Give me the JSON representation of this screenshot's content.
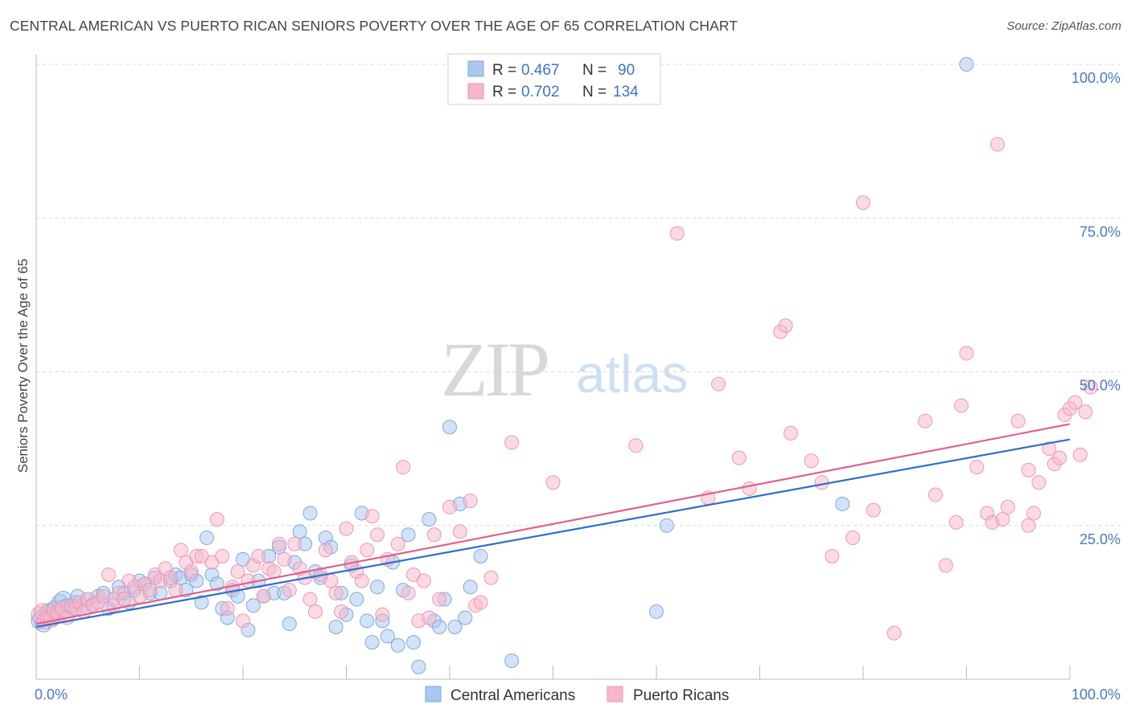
{
  "title": "CENTRAL AMERICAN VS PUERTO RICAN SENIORS POVERTY OVER THE AGE OF 65 CORRELATION CHART",
  "source": "Source: ZipAtlas.com",
  "watermark": {
    "zip": "ZIP",
    "atlas": "atlas"
  },
  "colors": {
    "blue_fill": "#a8c8f0",
    "blue_stroke": "#7fa9de",
    "blue_line": "#2f6fcb",
    "pink_fill": "#f7b6c9",
    "pink_stroke": "#ee97b2",
    "pink_line": "#e0618f",
    "grid": "#d9d9d9",
    "axis_text": "#4a78c2"
  },
  "legend": {
    "rows": [
      {
        "r_label": "R = ",
        "r_value": "0.467",
        "n_label": "N = ",
        "n_value": "90"
      },
      {
        "r_label": "R = ",
        "r_value": "0.702",
        "n_label": "N = ",
        "n_value": "134"
      }
    ]
  },
  "chart_data": {
    "type": "scatter",
    "title": "CENTRAL AMERICAN VS PUERTO RICAN SENIORS POVERTY OVER THE AGE OF 65 CORRELATION CHART",
    "xlabel": "",
    "ylabel": "Seniors Poverty Over the Age of 65",
    "xlim": [
      0,
      100
    ],
    "ylim": [
      0,
      100
    ],
    "x_tick_labels": [
      "0.0%",
      "100.0%"
    ],
    "y_tick_labels": [
      "100.0%",
      "75.0%",
      "50.0%",
      "25.0%"
    ],
    "y_ticks": [
      100,
      75,
      50,
      25
    ],
    "grid": true,
    "legend_position": "top-center",
    "series": [
      {
        "name": "Central Americans",
        "color": "#a8c8f0",
        "trend": {
          "x": [
            0,
            100
          ],
          "y": [
            8.5,
            39
          ]
        },
        "points": [
          [
            0.3,
            9.5
          ],
          [
            0.5,
            10
          ],
          [
            0.7,
            9
          ],
          [
            1,
            10.5
          ],
          [
            1.2,
            11
          ],
          [
            1.4,
            9.8
          ],
          [
            1.6,
            10.2
          ],
          [
            1.8,
            11.5
          ],
          [
            2,
            10.8
          ],
          [
            2.3,
            12.5
          ],
          [
            2.6,
            13
          ],
          [
            3,
            12
          ],
          [
            3.4,
            11.5
          ],
          [
            3.8,
            12.5
          ],
          [
            4,
            13.5
          ],
          [
            4.5,
            12
          ],
          [
            5,
            13
          ],
          [
            5.5,
            12.2
          ],
          [
            6,
            13.5
          ],
          [
            6.5,
            14
          ],
          [
            7,
            11.5
          ],
          [
            7.5,
            13
          ],
          [
            8,
            15
          ],
          [
            8.5,
            14
          ],
          [
            9,
            12.5
          ],
          [
            9.5,
            14.5
          ],
          [
            10,
            16
          ],
          [
            10.5,
            15.5
          ],
          [
            11,
            14
          ],
          [
            11.5,
            16.5
          ],
          [
            12,
            14
          ],
          [
            13,
            16
          ],
          [
            13.5,
            17
          ],
          [
            14,
            16.5
          ],
          [
            14.5,
            14.5
          ],
          [
            15,
            17
          ],
          [
            15.5,
            16
          ],
          [
            16,
            12.5
          ],
          [
            16.5,
            23
          ],
          [
            17,
            17
          ],
          [
            17.5,
            15.5
          ],
          [
            18,
            11.5
          ],
          [
            18.5,
            10
          ],
          [
            19,
            14.5
          ],
          [
            19.5,
            13.5
          ],
          [
            20,
            19.5
          ],
          [
            20.5,
            8
          ],
          [
            21,
            12
          ],
          [
            21.5,
            16
          ],
          [
            22,
            13.5
          ],
          [
            22.5,
            20
          ],
          [
            23,
            14
          ],
          [
            23.5,
            21.5
          ],
          [
            24,
            14
          ],
          [
            24.5,
            9
          ],
          [
            25,
            19
          ],
          [
            25.5,
            24
          ],
          [
            26,
            22
          ],
          [
            26.5,
            27
          ],
          [
            27,
            17.5
          ],
          [
            27.5,
            16.5
          ],
          [
            28,
            23
          ],
          [
            28.5,
            21.5
          ],
          [
            29,
            8.5
          ],
          [
            29.5,
            14
          ],
          [
            30,
            10.5
          ],
          [
            30.5,
            18.5
          ],
          [
            31,
            13
          ],
          [
            31.5,
            27
          ],
          [
            32,
            9.5
          ],
          [
            32.5,
            6
          ],
          [
            33,
            15
          ],
          [
            33.5,
            9.5
          ],
          [
            34,
            7
          ],
          [
            34.5,
            19
          ],
          [
            35,
            5.5
          ],
          [
            35.5,
            14.5
          ],
          [
            36,
            23.5
          ],
          [
            36.5,
            6
          ],
          [
            37,
            2
          ],
          [
            38,
            26
          ],
          [
            38.5,
            9.5
          ],
          [
            39,
            8.5
          ],
          [
            39.5,
            13
          ],
          [
            40,
            41
          ],
          [
            40.5,
            8.5
          ],
          [
            41,
            28.5
          ],
          [
            41.5,
            10
          ],
          [
            42,
            15
          ],
          [
            43,
            20
          ],
          [
            46,
            3
          ],
          [
            61,
            25
          ],
          [
            60,
            11
          ],
          [
            78,
            28.5
          ],
          [
            90,
            100
          ]
        ]
      },
      {
        "name": "Puerto Ricans",
        "color": "#f7b6c9",
        "trend": {
          "x": [
            0,
            100
          ],
          "y": [
            9,
            41.5
          ]
        },
        "points": [
          [
            0.3,
            10.5
          ],
          [
            0.6,
            11
          ],
          [
            0.9,
            9.5
          ],
          [
            1.2,
            10
          ],
          [
            1.5,
            9.8
          ],
          [
            1.8,
            11.2
          ],
          [
            2.2,
            10.5
          ],
          [
            2.6,
            11.5
          ],
          [
            3,
            10
          ],
          [
            3.4,
            12
          ],
          [
            3.8,
            11.5
          ],
          [
            4.2,
            12.5
          ],
          [
            4.6,
            11
          ],
          [
            5,
            13
          ],
          [
            5.5,
            12
          ],
          [
            6,
            12.5
          ],
          [
            6.5,
            13.5
          ],
          [
            7,
            17
          ],
          [
            7.5,
            12
          ],
          [
            8,
            14
          ],
          [
            8.5,
            13
          ],
          [
            9,
            16
          ],
          [
            9.5,
            15
          ],
          [
            10,
            13.5
          ],
          [
            10.5,
            15.5
          ],
          [
            11,
            14.5
          ],
          [
            11.5,
            17
          ],
          [
            12,
            16
          ],
          [
            12.5,
            18
          ],
          [
            13,
            16.5
          ],
          [
            13.5,
            14.5
          ],
          [
            14,
            21
          ],
          [
            14.5,
            19
          ],
          [
            15,
            17.5
          ],
          [
            15.5,
            20
          ],
          [
            16,
            20
          ],
          [
            17,
            19
          ],
          [
            17.5,
            26
          ],
          [
            18,
            20
          ],
          [
            18.5,
            11.5
          ],
          [
            19,
            15
          ],
          [
            19.5,
            17.5
          ],
          [
            20,
            9.5
          ],
          [
            20.5,
            16
          ],
          [
            21,
            18.5
          ],
          [
            21.5,
            20
          ],
          [
            22,
            13.5
          ],
          [
            22.5,
            18
          ],
          [
            23,
            17.5
          ],
          [
            23.5,
            22
          ],
          [
            24,
            19.5
          ],
          [
            24.5,
            14.5
          ],
          [
            25,
            22
          ],
          [
            25.5,
            18
          ],
          [
            26,
            16.5
          ],
          [
            26.5,
            13
          ],
          [
            27,
            11
          ],
          [
            27.5,
            17
          ],
          [
            28,
            21
          ],
          [
            28.5,
            16
          ],
          [
            29,
            14
          ],
          [
            29.5,
            11
          ],
          [
            30,
            24.5
          ],
          [
            30.5,
            19
          ],
          [
            31,
            17.5
          ],
          [
            31.5,
            16
          ],
          [
            32,
            21
          ],
          [
            32.5,
            26.5
          ],
          [
            33,
            23.5
          ],
          [
            33.5,
            10.5
          ],
          [
            34,
            19.5
          ],
          [
            35,
            22
          ],
          [
            35.5,
            34.5
          ],
          [
            36,
            14
          ],
          [
            36.5,
            17
          ],
          [
            37,
            9.5
          ],
          [
            37.5,
            16
          ],
          [
            38,
            10
          ],
          [
            38.5,
            23.5
          ],
          [
            39,
            13
          ],
          [
            40,
            28
          ],
          [
            41,
            24
          ],
          [
            42,
            29
          ],
          [
            42.5,
            12
          ],
          [
            43,
            12.5
          ],
          [
            44,
            16.5
          ],
          [
            46,
            38.5
          ],
          [
            50,
            32
          ],
          [
            58,
            38
          ],
          [
            62,
            72.5
          ],
          [
            65,
            29.5
          ],
          [
            66,
            48
          ],
          [
            68,
            36
          ],
          [
            69,
            31
          ],
          [
            72,
            56.5
          ],
          [
            72.5,
            57.5
          ],
          [
            73,
            40
          ],
          [
            75,
            35.5
          ],
          [
            76,
            32
          ],
          [
            77,
            20
          ],
          [
            79,
            23
          ],
          [
            80,
            77.5
          ],
          [
            81,
            27.5
          ],
          [
            83,
            7.5
          ],
          [
            86,
            42
          ],
          [
            87,
            30
          ],
          [
            88,
            18.5
          ],
          [
            89,
            25.5
          ],
          [
            89.5,
            44.5
          ],
          [
            90,
            53
          ],
          [
            91,
            34.5
          ],
          [
            92,
            27
          ],
          [
            92.5,
            25.5
          ],
          [
            93,
            87
          ],
          [
            93.5,
            26
          ],
          [
            94,
            28
          ],
          [
            95,
            42
          ],
          [
            96,
            25
          ],
          [
            96.5,
            27
          ],
          [
            97,
            32
          ],
          [
            98,
            37.5
          ],
          [
            98.5,
            35
          ],
          [
            99,
            36
          ],
          [
            99.5,
            43
          ],
          [
            100,
            44
          ],
          [
            100.5,
            45
          ],
          [
            101,
            36.5
          ],
          [
            101.5,
            43.5
          ],
          [
            102,
            47.5
          ],
          [
            96,
            34
          ]
        ]
      }
    ]
  },
  "bottom_legend": [
    "Central Americans",
    "Puerto Ricans"
  ]
}
